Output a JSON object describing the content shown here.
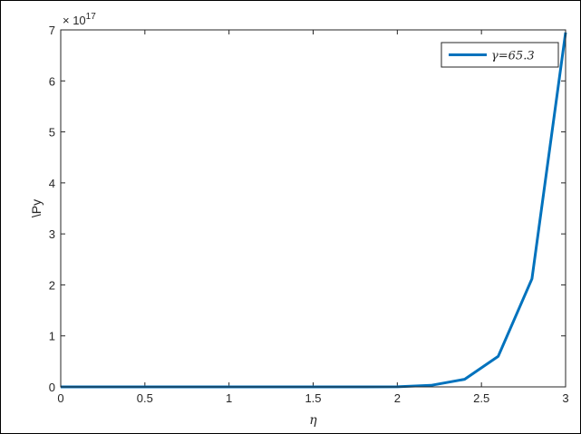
{
  "chart_data": {
    "type": "line",
    "xlabel": "η",
    "ylabel": "\\Py",
    "xlim": [
      0,
      3
    ],
    "ylim": [
      0,
      7
    ],
    "y_exponent_label": "× 10",
    "y_exponent": "17",
    "xticks": [
      "0",
      "0.5",
      "1",
      "1.5",
      "2",
      "2.5",
      "3"
    ],
    "yticks": [
      "0",
      "1",
      "2",
      "3",
      "4",
      "5",
      "6",
      "7"
    ],
    "grid": false,
    "legend": {
      "position": "top-right"
    },
    "series": [
      {
        "name": "γ=65.3",
        "color": "#0072BD",
        "x": [
          0,
          0.2,
          0.4,
          0.6,
          0.8,
          1.0,
          1.2,
          1.4,
          1.6,
          1.8,
          2.0,
          2.2,
          2.4,
          2.6,
          2.8,
          3.0
        ],
        "y": [
          0,
          0,
          0,
          0,
          0,
          0,
          0,
          0,
          0,
          0,
          0.002,
          0.03,
          0.15,
          0.6,
          2.12,
          6.95
        ]
      }
    ]
  }
}
